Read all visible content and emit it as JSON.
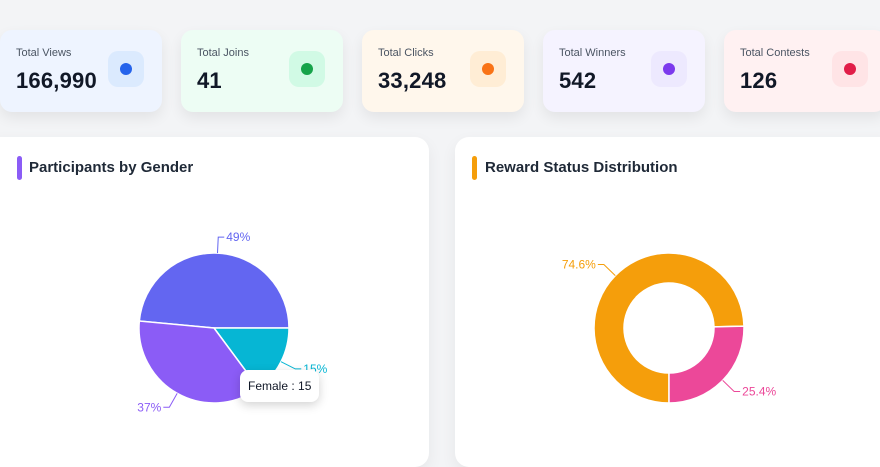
{
  "stats": [
    {
      "label": "Total Views",
      "value": "166,990",
      "icon": "views-dot-icon",
      "dot": "#2563eb",
      "tint": "#dbeafe",
      "bg": "#eef4ff"
    },
    {
      "label": "Total Joins",
      "value": "41",
      "icon": "joins-dot-icon",
      "dot": "#16a34a",
      "tint": "#d1fae5",
      "bg": "#edfdf4"
    },
    {
      "label": "Total Clicks",
      "value": "33,248",
      "icon": "clicks-dot-icon",
      "dot": "#f97316",
      "tint": "#ffedd5",
      "bg": "#fff7ec"
    },
    {
      "label": "Total Winners",
      "value": "542",
      "icon": "winners-dot-icon",
      "dot": "#7c3aed",
      "tint": "#ede9fe",
      "bg": "#f5f3ff"
    },
    {
      "label": "Total Contests",
      "value": "126",
      "icon": "contests-dot-icon",
      "dot": "#e11d48",
      "tint": "#ffe4e6",
      "bg": "#fff1f2"
    }
  ],
  "gender_panel": {
    "title": "Participants by Gender",
    "accent": "#8b5cf6",
    "tooltip": "Female : 15"
  },
  "reward_panel": {
    "title": "Reward Status Distribution",
    "accent": "#f59e0b"
  },
  "chart_data": [
    {
      "type": "pie",
      "title": "Participants by Gender",
      "slices": [
        {
          "value": 49,
          "label": "49%",
          "color": "#6366f1"
        },
        {
          "value": 15,
          "label": "15%",
          "color": "#06b6d4"
        },
        {
          "value": 37,
          "label": "37%",
          "color": "#8b5cf6"
        }
      ]
    },
    {
      "type": "pie",
      "subtype": "donut",
      "title": "Reward Status Distribution",
      "slices": [
        {
          "value": 74.6,
          "label": "74.6%",
          "color": "#f59e0b"
        },
        {
          "value": 25.4,
          "label": "25.4%",
          "color": "#ec4899"
        }
      ]
    }
  ]
}
